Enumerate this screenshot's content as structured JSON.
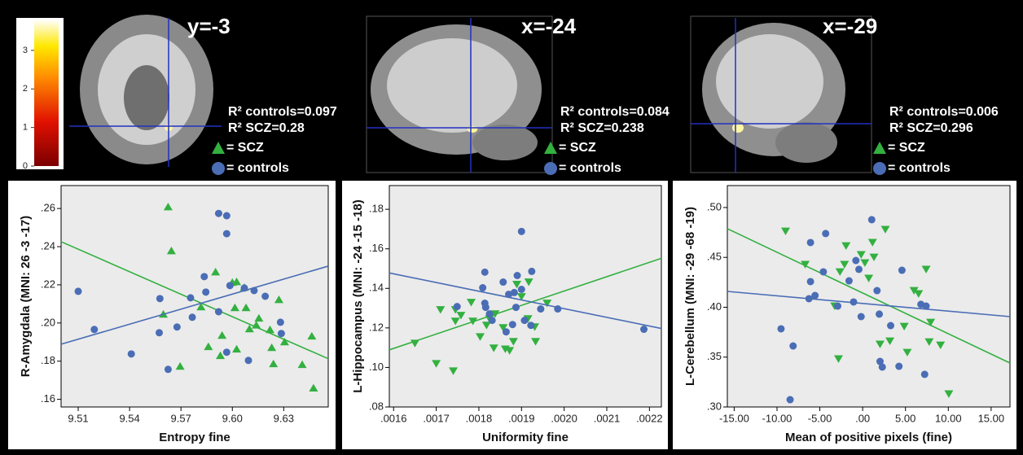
{
  "colorbar": {
    "ylim": [
      0,
      3.8
    ],
    "yticks": [
      0,
      1,
      2,
      3
    ]
  },
  "chart_data": [
    {
      "type": "scatter",
      "slice_label": "y=-3",
      "annotations": [
        "R² controls=0.097",
        "R² SCZ=0.28"
      ],
      "x_label": "Entropy fine",
      "y_label": "R-Amygdala (MNI: 26 -3 -17)",
      "xlim": [
        9.5,
        9.656
      ],
      "ylim": [
        0.156,
        0.272
      ],
      "xticks": [
        9.51,
        9.54,
        9.57,
        {
          "value": 9.6,
          "label": "9.60"
        },
        9.63
      ],
      "yticks": [
        {
          "value": 0.16,
          "label": ".16"
        },
        {
          "value": 0.18,
          "label": ".18"
        },
        {
          "value": 0.2,
          "label": ".20"
        },
        {
          "value": 0.22,
          "label": ".22"
        },
        {
          "value": 0.24,
          "label": ".24"
        },
        {
          "value": 0.26,
          "label": ".26"
        }
      ],
      "series": [
        {
          "name": "= SCZ",
          "color": "#33b040",
          "marker": "triangle",
          "x": [
            9.5625,
            9.5644,
            9.5597,
            9.5695,
            9.5817,
            9.5902,
            9.594,
            9.593,
            9.6,
            9.6025,
            9.6015,
            9.6025,
            9.607,
            9.608,
            9.61,
            9.614,
            9.6155,
            9.6272,
            9.622,
            9.623,
            9.6305,
            9.6408,
            9.6464,
            9.6474,
            9.624,
            9.586
          ],
          "y": [
            0.2609,
            0.2379,
            0.2047,
            0.1774,
            0.2085,
            0.2268,
            0.1936,
            0.183,
            0.2213,
            0.2217,
            0.2081,
            0.1864,
            0.2187,
            0.2081,
            0.197,
            0.199,
            0.2026,
            0.2123,
            0.1966,
            0.1872,
            0.1902,
            0.1783,
            0.1932,
            0.166,
            0.1787,
            0.1877
          ],
          "fit": {
            "x": [
              9.5,
              9.656
            ],
            "y": [
              0.2426,
              0.1813
            ]
          }
        },
        {
          "name": "= controls",
          "color": "#4a6db5",
          "marker": "circle",
          "x": [
            9.51,
            9.5194,
            9.541,
            9.5573,
            9.5577,
            9.5625,
            9.5677,
            9.5756,
            9.5766,
            9.5836,
            9.5845,
            9.592,
            9.592,
            9.5967,
            9.5967,
            9.5967,
            9.5986,
            9.607,
            9.6094,
            9.6127,
            9.6192,
            9.6281,
            9.6286
          ],
          "y": [
            0.2166,
            0.1966,
            0.1838,
            0.1949,
            0.2128,
            0.1757,
            0.1979,
            0.2132,
            0.203,
            0.2243,
            0.2162,
            0.2574,
            0.2059,
            0.2562,
            0.2468,
            0.1847,
            0.2196,
            0.2183,
            0.1804,
            0.217,
            0.214,
            0.2004,
            0.1945
          ],
          "fit": {
            "x": [
              9.5,
              9.656
            ],
            "y": [
              0.1889,
              0.2298
            ]
          }
        }
      ]
    },
    {
      "type": "scatter",
      "slice_label": "x=-24",
      "annotations": [
        "R² controls=0.084",
        "R² SCZ=0.238"
      ],
      "x_label": "Uniformity fine",
      "y_label": "L-Hippocampus (MNI: -24 -15 -18)",
      "xlim": [
        0.00159,
        0.002228
      ],
      "ylim": [
        0.08,
        0.192
      ],
      "xticks": [
        {
          "value": 0.0016,
          "label": ".0016"
        },
        {
          "value": 0.0017,
          "label": ".0017"
        },
        {
          "value": 0.0018,
          "label": ".0018"
        },
        {
          "value": 0.0019,
          "label": ".0019"
        },
        {
          "value": 0.002,
          "label": ".0020"
        },
        {
          "value": 0.0021,
          "label": ".0021"
        },
        {
          "value": 0.0022,
          "label": ".0022"
        }
      ],
      "yticks": [
        {
          "value": 0.08,
          "label": ".08"
        },
        {
          "value": 0.1,
          "label": ".10"
        },
        {
          "value": 0.12,
          "label": ".12"
        },
        {
          "value": 0.14,
          "label": ".14"
        },
        {
          "value": 0.16,
          "label": ".16"
        },
        {
          "value": 0.18,
          "label": ".18"
        }
      ],
      "series": [
        {
          "name": "= SCZ",
          "color": "#33b040",
          "marker": "triangle-down",
          "x": [
            0.00165,
            0.0017,
            0.00171,
            0.00174,
            0.001745,
            0.001745,
            0.001758,
            0.001782,
            0.001786,
            0.001803,
            0.001825,
            0.001838,
            0.001857,
            0.001862,
            0.001872,
            0.001881,
            0.001889,
            0.0019,
            0.001917,
            0.001915,
            0.001931,
            0.001933,
            0.001835,
            0.001818,
            0.00196
          ],
          "y": [
            0.1122,
            0.1019,
            0.1292,
            0.0982,
            0.1292,
            0.1234,
            0.1263,
            0.1329,
            0.1234,
            0.1155,
            0.1246,
            0.1271,
            0.1201,
            0.1093,
            0.1085,
            0.1131,
            0.142,
            0.1358,
            0.1432,
            0.1246,
            0.1205,
            0.1131,
            0.1098,
            0.1213,
            0.1325
          ],
          "fit": {
            "x": [
              0.00159,
              0.002228
            ],
            "y": [
              0.1089,
              0.1552
            ]
          }
        },
        {
          "name": "= controls",
          "color": "#4a6db5",
          "marker": "circle",
          "x": [
            0.001749,
            0.001809,
            0.001814,
            0.001814,
            0.001816,
            0.001857,
            0.001864,
            0.00187,
            0.001879,
            0.001883,
            0.001887,
            0.00189,
            0.0019,
            0.001924,
            0.001922,
            0.001945,
            0.001985,
            0.001907,
            0.0019,
            0.002187,
            0.001825,
            0.001831
          ],
          "y": [
            0.1308,
            0.1403,
            0.1482,
            0.1325,
            0.1304,
            0.1432,
            0.118,
            0.137,
            0.1217,
            0.1379,
            0.1304,
            0.1465,
            0.1395,
            0.1486,
            0.1213,
            0.1296,
            0.1296,
            0.1238,
            0.1688,
            0.1193,
            0.1271,
            0.1238
          ],
          "fit": {
            "x": [
              0.00159,
              0.002228
            ],
            "y": [
              0.1478,
              0.1197
            ]
          }
        }
      ]
    },
    {
      "type": "scatter",
      "slice_label": "x=-29",
      "annotations": [
        "R² controls=0.006",
        "R² SCZ=0.296"
      ],
      "x_label": "Mean of positive pixels (fine)",
      "y_label": "L-Cerebellum (MNI: -29 -68 -19)",
      "xlim": [
        -15.8,
        17.2
      ],
      "ylim": [
        0.3,
        0.522
      ],
      "xticks": [
        {
          "value": -15,
          "label": "-15.00"
        },
        {
          "value": -10,
          "label": "-10.00"
        },
        {
          "value": -5,
          "label": "-5.00"
        },
        {
          "value": 0,
          "label": ".00"
        },
        {
          "value": 5,
          "label": "5.00"
        },
        {
          "value": 10,
          "label": "10.00"
        },
        {
          "value": 15,
          "label": "15.00"
        }
      ],
      "yticks": [
        {
          "value": 0.3,
          "label": ".30"
        },
        {
          "value": 0.35,
          "label": ".35"
        },
        {
          "value": 0.4,
          "label": ".40"
        },
        {
          "value": 0.45,
          "label": ".45"
        },
        {
          "value": 0.5,
          "label": ".50"
        }
      ],
      "series": [
        {
          "name": "= SCZ",
          "color": "#33b040",
          "marker": "triangle-down",
          "x": [
            -9,
            -6.71,
            -3.27,
            -2.82,
            -2.65,
            -1.94,
            -2.12,
            -0.18,
            0.26,
            0.71,
            1.32,
            2.65,
            3.18,
            4.85,
            5.21,
            6,
            6.53,
            7.41,
            7.94,
            9.09,
            10.06,
            7.77,
            2.03,
            1.15
          ],
          "y": [
            0.4763,
            0.4429,
            0.4012,
            0.3482,
            0.4355,
            0.4616,
            0.4429,
            0.4527,
            0.4445,
            0.429,
            0.4502,
            0.478,
            0.3661,
            0.3808,
            0.3547,
            0.4167,
            0.4135,
            0.438,
            0.3849,
            0.362,
            0.3131,
            0.3653,
            0.3629,
            0.4649
          ],
          "fit": {
            "x": [
              -15.8,
              17.2
            ],
            "y": [
              0.4788,
              0.3441
            ]
          }
        },
        {
          "name": "= controls",
          "color": "#4a6db5",
          "marker": "circle",
          "x": [
            -9.53,
            -8.47,
            -8.12,
            -6.27,
            -6.09,
            -5.56,
            -2.91,
            -6.09,
            -4.32,
            -4.59,
            -1.59,
            -1.06,
            -0.79,
            -0.44,
            -0.18,
            1.06,
            1.68,
            1.94,
            2.03,
            2.29,
            3.27,
            4.59,
            4.24,
            6.8,
            7.41,
            7.24
          ],
          "y": [
            0.3784,
            0.3073,
            0.3612,
            0.4086,
            0.4257,
            0.4118,
            0.4012,
            0.4649,
            0.4739,
            0.4355,
            0.4265,
            0.4053,
            0.4469,
            0.438,
            0.3906,
            0.4878,
            0.4167,
            0.3931,
            0.3457,
            0.34,
            0.3816,
            0.4371,
            0.3408,
            0.4029,
            0.4012,
            0.3327
          ],
          "fit": {
            "x": [
              -15.8,
              17.2
            ],
            "y": [
              0.4159,
              0.3906
            ]
          }
        }
      ]
    }
  ]
}
